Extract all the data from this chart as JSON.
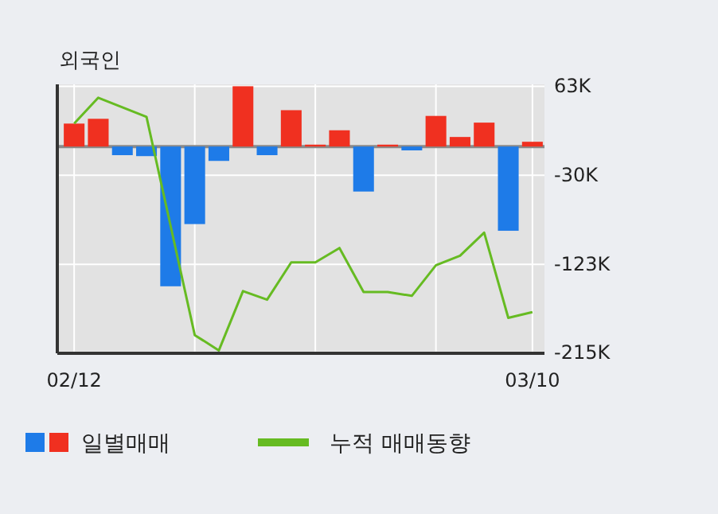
{
  "chart_data": {
    "type": "bar",
    "title": "외국인",
    "categories": [
      "02/12",
      null,
      null,
      null,
      null,
      null,
      null,
      null,
      null,
      null,
      null,
      null,
      null,
      null,
      null,
      null,
      null,
      null,
      null,
      "03/10"
    ],
    "series": [
      {
        "name": "일별매매",
        "colors": [
          "#f03020",
          "#f03020",
          "#1e7be8",
          "#1e7be8",
          "#1e7be8",
          "#1e7be8",
          "#1e7be8",
          "#f03020",
          "#1e7be8",
          "#f03020",
          "#f03020",
          "#f03020",
          "#1e7be8",
          "#f03020",
          "#1e7be8",
          "#f03020",
          "#f03020",
          "#f03020",
          "#1e7be8",
          "#f03020"
        ],
        "values": [
          24,
          29,
          -9,
          -10,
          -146,
          -81,
          -15,
          63,
          -9,
          38,
          2,
          17,
          -47,
          2,
          -4,
          32,
          10,
          25,
          -88,
          5
        ]
      },
      {
        "name": "누적 매매동향",
        "type": "line",
        "color": "#66bb22",
        "values": [
          24,
          51,
          41,
          31,
          -83,
          -197,
          -213,
          -151,
          -160,
          -121,
          -121,
          -106,
          -152,
          -152,
          -156,
          -124,
          -114,
          -90,
          -179,
          -173
        ]
      }
    ],
    "ylim": [
      -216,
      65
    ],
    "yticks": [
      {
        "value": 63,
        "label": "63K"
      },
      {
        "value": -30,
        "label": "-30K"
      },
      {
        "value": -123,
        "label": "-123K"
      },
      {
        "value": -215,
        "label": "-215K"
      }
    ],
    "grid": true,
    "legend": "bottom"
  }
}
